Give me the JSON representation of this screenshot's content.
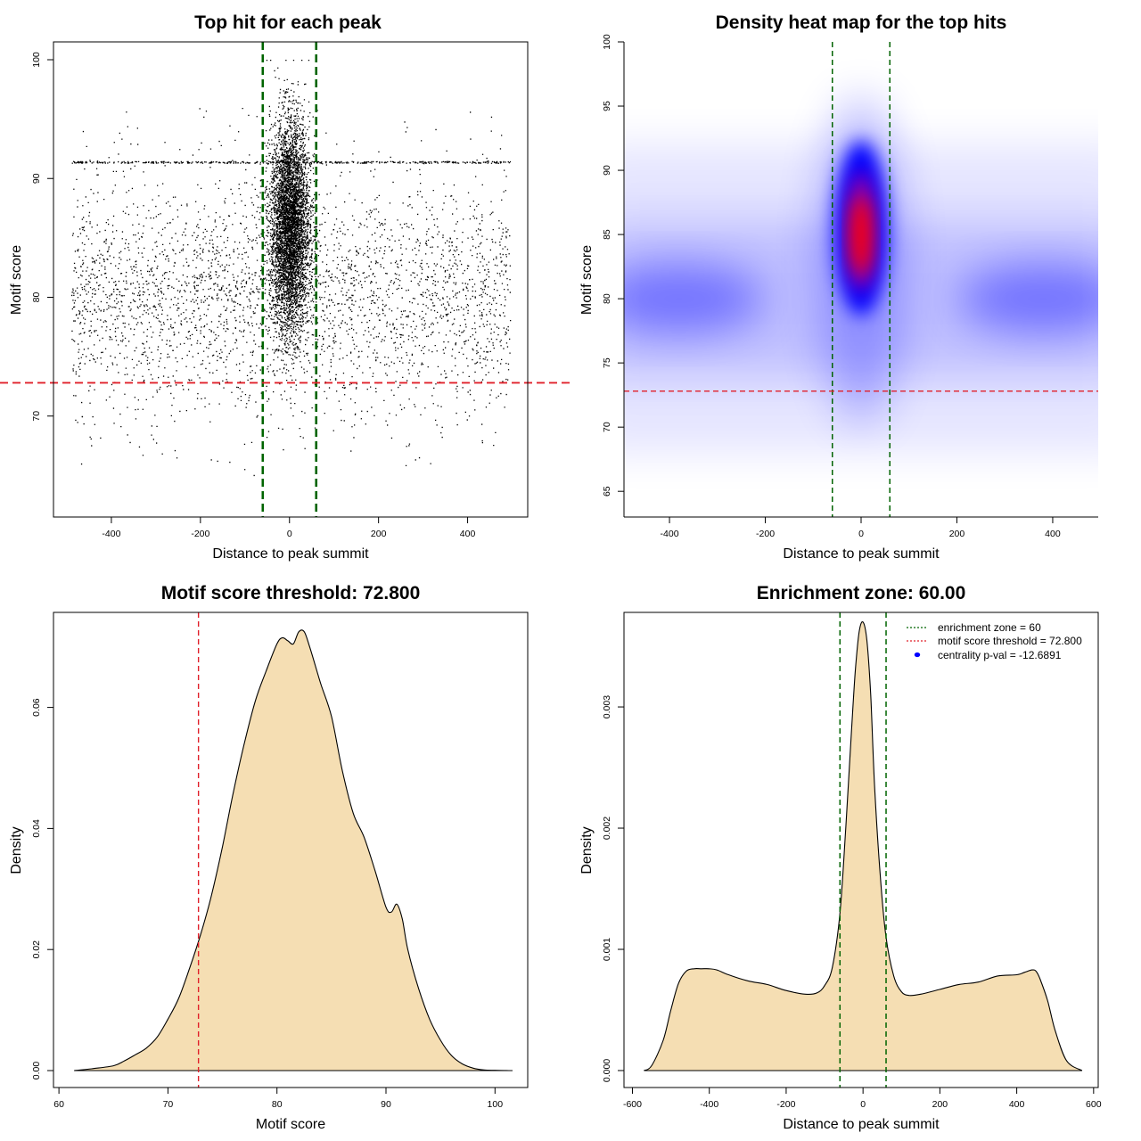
{
  "colors": {
    "zone": "#006400",
    "threshold": "#e0202a",
    "fill": "#f5deb3",
    "point": "#000000",
    "heat_low": "#ffffff",
    "heat_mid": "#0000ff",
    "heat_high": "#ff0000",
    "legend_dot": "#0000ff"
  },
  "chart_data": [
    {
      "id": "scatter",
      "type": "scatter",
      "title": "Top hit for each peak",
      "xlabel": "Distance to peak summit",
      "ylabel": "Motif score",
      "xlim": [
        -530,
        535
      ],
      "ylim": [
        61.5,
        101.5
      ],
      "xticks": [
        -400,
        -200,
        0,
        200,
        400
      ],
      "yticks": [
        70,
        80,
        90,
        100
      ],
      "vlines": [
        -60,
        60
      ],
      "hline": 72.8,
      "background_x_range": [
        -490,
        495
      ],
      "background_center_score": 80,
      "central_cluster_center_score": 86,
      "central_cluster_x_sd": 22,
      "horizontal_band_score": 91.4
    },
    {
      "id": "heatmap",
      "type": "heatmap",
      "title": "Density heat map for the top hits",
      "xlabel": "Distance to peak summit",
      "ylabel": "Motif score",
      "xlim": [
        -495,
        495
      ],
      "ylim": [
        63,
        100
      ],
      "xticks": [
        -400,
        -200,
        0,
        200,
        400
      ],
      "yticks": [
        65,
        70,
        75,
        80,
        85,
        90,
        95,
        100
      ],
      "vlines": [
        -60,
        60
      ],
      "hline": 72.8,
      "hotspot": {
        "x": 0,
        "y": 85.5
      },
      "side_blobs": [
        {
          "x": -380,
          "y": 80
        },
        {
          "x": 380,
          "y": 80
        }
      ]
    },
    {
      "id": "score-density",
      "type": "area",
      "title": "Motif score threshold: 72.800",
      "xlabel": "Motif score",
      "ylabel": "Density",
      "xlim": [
        59.5,
        103
      ],
      "ylim": [
        -0.0028,
        0.0757
      ],
      "xticks": [
        60,
        70,
        80,
        90,
        100
      ],
      "yticks": [
        0.0,
        0.02,
        0.04,
        0.06
      ],
      "ytick_labels": [
        "0.00",
        "0.02",
        "0.04",
        "0.06"
      ],
      "vline": 72.8,
      "x": [
        61.4,
        63,
        65,
        66,
        67,
        68,
        69,
        70,
        71,
        72,
        73,
        74,
        75,
        76,
        77,
        78,
        79,
        80,
        80.5,
        81,
        81.5,
        82,
        82.5,
        83,
        84,
        85,
        86,
        87,
        88,
        89,
        90,
        90.5,
        91,
        91.5,
        92,
        93,
        94,
        95,
        96,
        97,
        98,
        99,
        100,
        101,
        101.6
      ],
      "y": [
        0.0,
        0.0003,
        0.0008,
        0.0016,
        0.0026,
        0.0037,
        0.0055,
        0.0085,
        0.012,
        0.017,
        0.0225,
        0.029,
        0.037,
        0.046,
        0.054,
        0.061,
        0.066,
        0.0705,
        0.0715,
        0.071,
        0.0705,
        0.0725,
        0.0725,
        0.07,
        0.064,
        0.0585,
        0.0495,
        0.0425,
        0.0385,
        0.033,
        0.027,
        0.0262,
        0.0275,
        0.025,
        0.02,
        0.0135,
        0.0085,
        0.005,
        0.0025,
        0.0011,
        0.0004,
        0.0001,
        4e-05,
        1e-05,
        0.0
      ]
    },
    {
      "id": "distance-density",
      "type": "area",
      "title": "Enrichment zone: 60.00",
      "xlabel": "Distance to peak summit",
      "ylabel": "Density",
      "xlim": [
        -622,
        612
      ],
      "ylim": [
        -0.00014,
        0.00378
      ],
      "xticks": [
        -600,
        -400,
        -200,
        0,
        200,
        400,
        600
      ],
      "yticks": [
        0.0,
        0.001,
        0.002,
        0.003
      ],
      "ytick_labels": [
        "0.000",
        "0.001",
        "0.002",
        "0.003"
      ],
      "vlines": [
        -60,
        60
      ],
      "x": [
        -570,
        -550,
        -520,
        -500,
        -480,
        -460,
        -440,
        -420,
        -400,
        -380,
        -350,
        -300,
        -250,
        -200,
        -150,
        -120,
        -100,
        -80,
        -60,
        -45,
        -30,
        -20,
        -10,
        0,
        10,
        20,
        30,
        45,
        60,
        80,
        100,
        120,
        150,
        200,
        250,
        300,
        350,
        400,
        420,
        440,
        450,
        460,
        480,
        500,
        530,
        570
      ],
      "y": [
        0.0,
        4e-05,
        0.00025,
        0.0005,
        0.00072,
        0.00082,
        0.00084,
        0.00084,
        0.00084,
        0.00083,
        0.00079,
        0.00074,
        0.00071,
        0.00066,
        0.00063,
        0.00064,
        0.0007,
        0.00085,
        0.0013,
        0.002,
        0.0028,
        0.0033,
        0.00362,
        0.0037,
        0.00355,
        0.0031,
        0.00235,
        0.0016,
        0.0011,
        0.00078,
        0.00065,
        0.00062,
        0.00063,
        0.00067,
        0.00071,
        0.00073,
        0.00078,
        0.00079,
        0.00081,
        0.00083,
        0.00082,
        0.00076,
        0.00058,
        0.00033,
        8e-05,
        0.0
      ]
    }
  ],
  "legend": {
    "zone_label": "enrichment zone = 60",
    "threshold_label": "motif score threshold = 72.800",
    "pval_label": "centrality p-val = -12.6891"
  }
}
